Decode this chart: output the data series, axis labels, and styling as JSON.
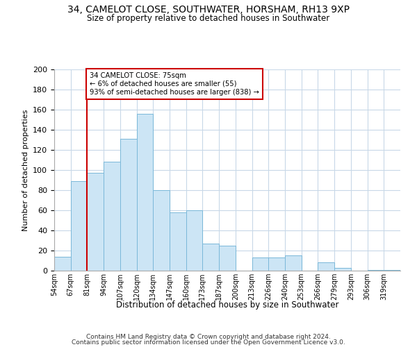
{
  "title": "34, CAMELOT CLOSE, SOUTHWATER, HORSHAM, RH13 9XP",
  "subtitle": "Size of property relative to detached houses in Southwater",
  "xlabel": "Distribution of detached houses by size in Southwater",
  "ylabel": "Number of detached properties",
  "bar_labels": [
    "54sqm",
    "67sqm",
    "81sqm",
    "94sqm",
    "107sqm",
    "120sqm",
    "134sqm",
    "147sqm",
    "160sqm",
    "173sqm",
    "187sqm",
    "200sqm",
    "213sqm",
    "226sqm",
    "240sqm",
    "253sqm",
    "266sqm",
    "279sqm",
    "293sqm",
    "306sqm",
    "319sqm"
  ],
  "bar_values": [
    14,
    89,
    97,
    108,
    131,
    156,
    80,
    58,
    60,
    27,
    25,
    0,
    13,
    13,
    15,
    0,
    8,
    3,
    0,
    1,
    1
  ],
  "bar_color": "#cce5f5",
  "bar_edge_color": "#7ab8d9",
  "property_line_label": "34 CAMELOT CLOSE: 75sqm",
  "annotation_line1": "← 6% of detached houses are smaller (55)",
  "annotation_line2": "93% of semi-detached houses are larger (838) →",
  "annotation_box_color": "#ffffff",
  "annotation_box_edge": "#cc0000",
  "vline_color": "#cc0000",
  "ylim": [
    0,
    200
  ],
  "yticks": [
    0,
    20,
    40,
    60,
    80,
    100,
    120,
    140,
    160,
    180,
    200
  ],
  "footer1": "Contains HM Land Registry data © Crown copyright and database right 2024.",
  "footer2": "Contains public sector information licensed under the Open Government Licence v3.0.",
  "bg_color": "#ffffff",
  "grid_color": "#c8d8e8"
}
